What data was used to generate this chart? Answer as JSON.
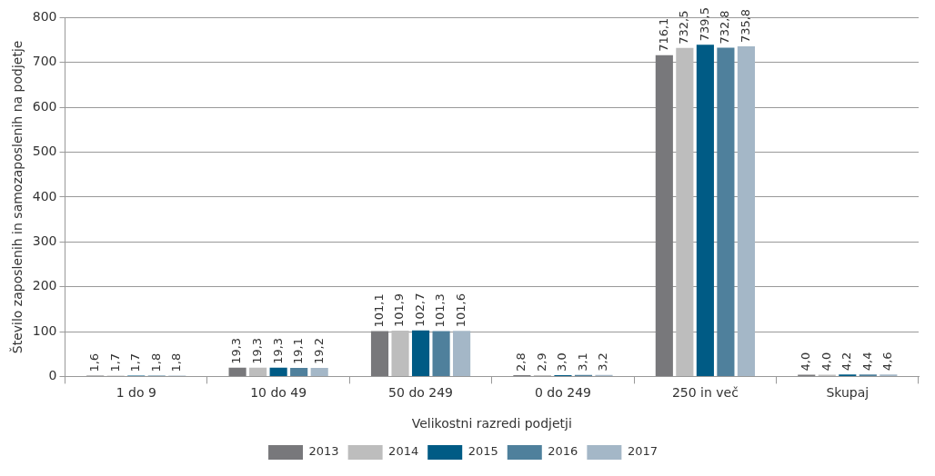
{
  "chart_data": {
    "type": "bar",
    "xlabel": "Velikostni razredi podjetji",
    "ylabel": "Število zaposlenih in samozaposlenih na podjetje",
    "categories": [
      "1 do 9",
      "10 do 49",
      "50 do 249",
      "0 do 249",
      "250 in več",
      "Skupaj"
    ],
    "series": [
      {
        "name": "2013",
        "color": "#78787b",
        "values": [
          1.6,
          19.3,
          101.1,
          2.8,
          716.1,
          4.0
        ],
        "value_labels": [
          "1,6",
          "19,3",
          "101,1",
          "2,8",
          "716,1",
          "4,0"
        ]
      },
      {
        "name": "2014",
        "color": "#bdbdbd",
        "values": [
          1.7,
          19.3,
          101.9,
          2.9,
          732.5,
          4.0
        ],
        "value_labels": [
          "1,7",
          "19,3",
          "101,9",
          "2,9",
          "732,5",
          "4,0"
        ]
      },
      {
        "name": "2015",
        "color": "#005b85",
        "values": [
          1.7,
          19.3,
          102.7,
          3.0,
          739.5,
          4.2
        ],
        "value_labels": [
          "1,7",
          "19,3",
          "102,7",
          "3,0",
          "739,5",
          "4,2"
        ]
      },
      {
        "name": "2016",
        "color": "#4f809c",
        "values": [
          1.8,
          19.1,
          101.3,
          3.1,
          732.8,
          4.4
        ],
        "value_labels": [
          "1,8",
          "19,1",
          "101,3",
          "3,1",
          "732,8",
          "4,4"
        ]
      },
      {
        "name": "2017",
        "color": "#a4b7c7",
        "values": [
          1.8,
          19.2,
          101.6,
          3.2,
          735.8,
          4.6
        ],
        "value_labels": [
          "1,8",
          "19,2",
          "101,6",
          "3,2",
          "735,8",
          "4,6"
        ]
      }
    ],
    "ylim": [
      0,
      800
    ],
    "yticks": [
      0,
      100,
      200,
      300,
      400,
      500,
      600,
      700,
      800
    ],
    "grid": "y",
    "legend": "bottom"
  }
}
